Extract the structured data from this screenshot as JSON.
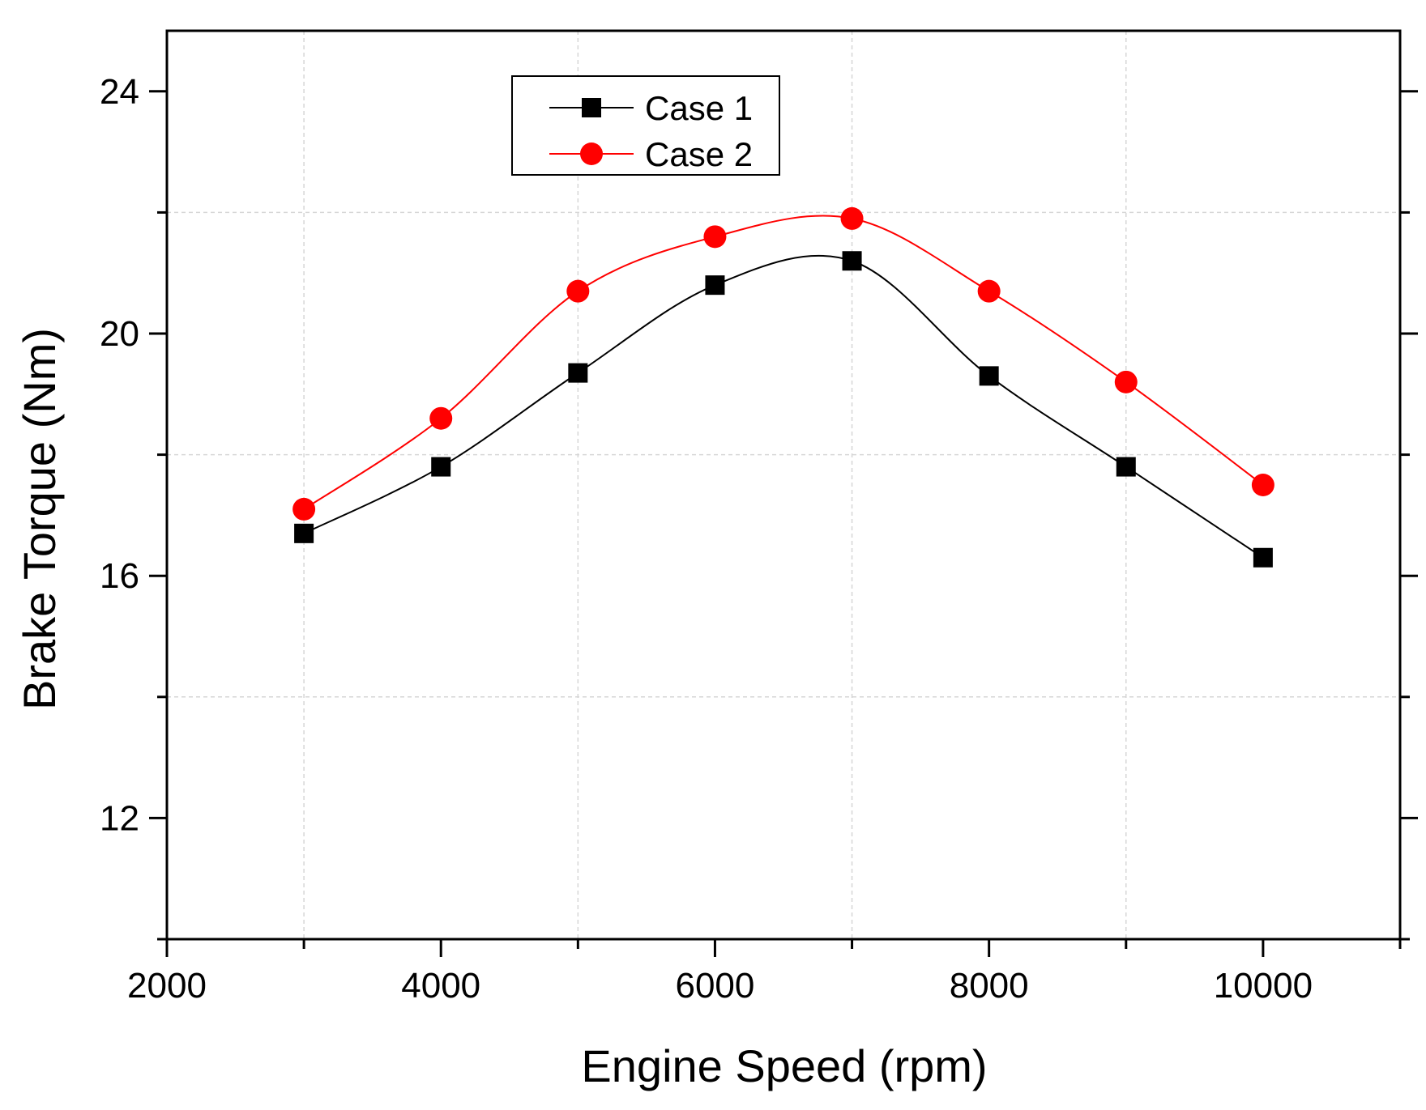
{
  "chart_data": {
    "type": "line",
    "title": "",
    "xlabel": "Engine Speed (rpm)",
    "ylabel": "Brake Torque (Nm)",
    "xlim": [
      2000,
      11000
    ],
    "ylim": [
      10,
      25
    ],
    "x_ticks": [
      2000,
      4000,
      6000,
      8000,
      10000
    ],
    "x_tick_labels": [
      "2000",
      "4000",
      "6000",
      "8000",
      "10000"
    ],
    "x_minor_ticks": [
      3000,
      5000,
      7000,
      9000,
      11000
    ],
    "y_ticks": [
      12,
      16,
      20,
      24
    ],
    "y_tick_labels": [
      "12",
      "16",
      "20",
      "24"
    ],
    "y_minor_ticks": [
      10,
      14,
      18,
      22
    ],
    "grid": true,
    "legend_position": "top-left",
    "x": [
      3000,
      4000,
      5000,
      6000,
      7000,
      8000,
      9000,
      10000
    ],
    "series": [
      {
        "name": "Case 1",
        "color": "#000000",
        "marker": "square",
        "values": [
          16.7,
          17.8,
          19.35,
          20.8,
          21.2,
          19.3,
          17.8,
          16.3
        ]
      },
      {
        "name": "Case 2",
        "color": "#ff0000",
        "marker": "circle",
        "values": [
          17.1,
          18.6,
          20.7,
          21.6,
          21.9,
          20.7,
          19.2,
          17.5
        ]
      }
    ]
  }
}
